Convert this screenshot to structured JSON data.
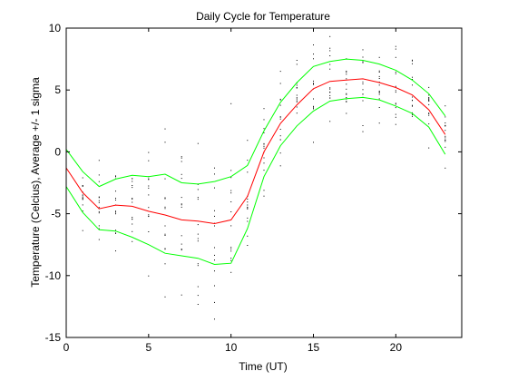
{
  "chart_data": {
    "type": "line",
    "title": "Daily Cycle for Temperature",
    "xlabel": "Time (UT)",
    "ylabel": "Temperature (Celcius), Average +/- 1 sigma",
    "xlim": [
      0,
      24
    ],
    "ylim": [
      -15,
      10
    ],
    "xticks": [
      0,
      5,
      10,
      15,
      20
    ],
    "yticks": [
      -15,
      -10,
      -5,
      0,
      5,
      10
    ],
    "grid": false,
    "x": [
      0,
      1,
      2,
      3,
      4,
      5,
      6,
      7,
      8,
      9,
      10,
      11,
      12,
      13,
      14,
      15,
      16,
      17,
      18,
      19,
      20,
      21,
      22,
      23
    ],
    "series": [
      {
        "role": "average",
        "color": "#ff0000",
        "values": [
          -1.3,
          -3.3,
          -4.6,
          -4.3,
          -4.4,
          -4.8,
          -5.1,
          -5.5,
          -5.6,
          -5.8,
          -5.5,
          -3.6,
          0.0,
          2.3,
          3.8,
          5.1,
          5.7,
          5.8,
          5.9,
          5.6,
          5.2,
          4.6,
          3.4,
          1.4
        ]
      },
      {
        "role": "average + 1 sigma",
        "color": "#00ff00",
        "values": [
          0.2,
          -1.6,
          -2.8,
          -2.2,
          -1.9,
          -2.0,
          -1.8,
          -2.5,
          -2.6,
          -2.4,
          -2.0,
          -1.1,
          1.7,
          4.0,
          5.6,
          6.9,
          7.3,
          7.5,
          7.4,
          7.1,
          6.6,
          5.8,
          4.7,
          2.9
        ]
      },
      {
        "role": "average - 1 sigma",
        "color": "#00ff00",
        "values": [
          -2.8,
          -4.9,
          -6.3,
          -6.4,
          -6.9,
          -7.5,
          -8.2,
          -8.4,
          -8.6,
          -9.1,
          -9.0,
          -6.2,
          -2.0,
          0.5,
          2.1,
          3.3,
          4.1,
          4.3,
          4.4,
          4.2,
          3.7,
          3.1,
          2.0,
          -0.2
        ]
      }
    ],
    "scatter": {
      "color": "#000000",
      "marker": "dot",
      "note_points_per_hour": 14
    }
  }
}
